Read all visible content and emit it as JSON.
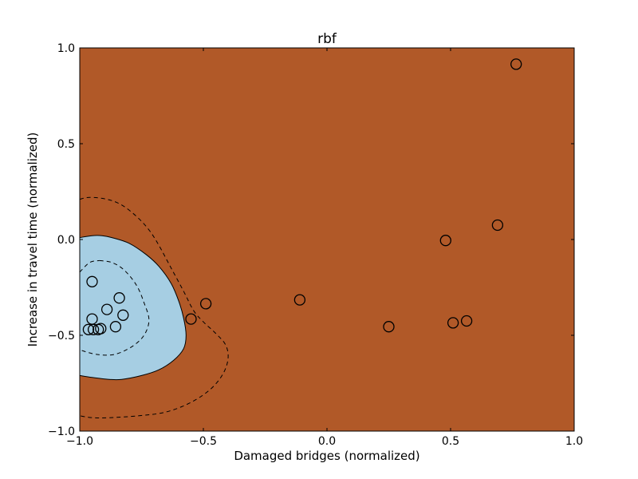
{
  "chart_data": {
    "type": "scatter",
    "title": "rbf",
    "xlabel": "Damaged bridges (normalized)",
    "ylabel": "Increase in travel time (normalized)",
    "xlim": [
      -1.0,
      1.0
    ],
    "ylim": [
      -1.0,
      1.0
    ],
    "x_ticks": [
      "−1.0",
      "−0.5",
      "0.0",
      "0.5",
      "1.0"
    ],
    "x_tick_values": [
      -1.0,
      -0.5,
      0.0,
      0.5,
      1.0
    ],
    "y_ticks": [
      "−1.0",
      "−0.5",
      "0.0",
      "0.5",
      "1.0"
    ],
    "y_tick_values": [
      -1.0,
      -0.5,
      0.0,
      0.5,
      1.0
    ],
    "grid": false,
    "colors": {
      "background_class": "#b15928",
      "region_class": "#a6cee3",
      "points_edge": "#000000"
    },
    "decision_boundary": [
      [
        -1.0,
        0.01
      ],
      [
        -0.95,
        0.02
      ],
      [
        -0.91,
        0.02
      ],
      [
        -0.87,
        0.01
      ],
      [
        -0.8,
        -0.02
      ],
      [
        -0.73,
        -0.08
      ],
      [
        -0.68,
        -0.14
      ],
      [
        -0.63,
        -0.23
      ],
      [
        -0.6,
        -0.32
      ],
      [
        -0.58,
        -0.41
      ],
      [
        -0.57,
        -0.5
      ],
      [
        -0.58,
        -0.57
      ],
      [
        -0.62,
        -0.63
      ],
      [
        -0.68,
        -0.68
      ],
      [
        -0.75,
        -0.71
      ],
      [
        -0.83,
        -0.73
      ],
      [
        -0.88,
        -0.73
      ],
      [
        -0.95,
        -0.72
      ],
      [
        -1.0,
        -0.71
      ]
    ],
    "margin_outer": [
      [
        -1.0,
        0.21
      ],
      [
        -0.96,
        0.22
      ],
      [
        -0.89,
        0.21
      ],
      [
        -0.83,
        0.18
      ],
      [
        -0.77,
        0.12
      ],
      [
        -0.72,
        0.05
      ],
      [
        -0.68,
        -0.03
      ],
      [
        -0.63,
        -0.15
      ],
      [
        -0.58,
        -0.27
      ],
      [
        -0.54,
        -0.37
      ],
      [
        -0.5,
        -0.43
      ],
      [
        -0.45,
        -0.49
      ],
      [
        -0.41,
        -0.55
      ],
      [
        -0.4,
        -0.62
      ],
      [
        -0.42,
        -0.7
      ],
      [
        -0.47,
        -0.78
      ],
      [
        -0.55,
        -0.85
      ],
      [
        -0.65,
        -0.9
      ],
      [
        -0.76,
        -0.92
      ],
      [
        -0.88,
        -0.93
      ],
      [
        -0.95,
        -0.93
      ],
      [
        -1.0,
        -0.92
      ]
    ],
    "margin_inner": [
      [
        -0.92,
        -0.11
      ],
      [
        -0.87,
        -0.12
      ],
      [
        -0.82,
        -0.16
      ],
      [
        -0.77,
        -0.24
      ],
      [
        -0.74,
        -0.33
      ],
      [
        -0.72,
        -0.42
      ],
      [
        -0.74,
        -0.5
      ],
      [
        -0.79,
        -0.56
      ],
      [
        -0.86,
        -0.6
      ],
      [
        -0.93,
        -0.6
      ],
      [
        -0.99,
        -0.58
      ],
      [
        -1.0,
        -0.57
      ]
    ],
    "margin_inner_top": [
      [
        -1.0,
        -0.17
      ],
      [
        -0.96,
        -0.12
      ],
      [
        -0.92,
        -0.11
      ]
    ],
    "points": [
      {
        "x": -0.95,
        "y": -0.22
      },
      {
        "x": -0.84,
        "y": -0.305
      },
      {
        "x": -0.89,
        "y": -0.365
      },
      {
        "x": -0.825,
        "y": -0.395
      },
      {
        "x": -0.95,
        "y": -0.415
      },
      {
        "x": -0.855,
        "y": -0.455
      },
      {
        "x": -0.965,
        "y": -0.47
      },
      {
        "x": -0.945,
        "y": -0.47
      },
      {
        "x": -0.925,
        "y": -0.47
      },
      {
        "x": -0.915,
        "y": -0.465
      },
      {
        "x": -0.55,
        "y": -0.415
      },
      {
        "x": -0.49,
        "y": -0.335
      },
      {
        "x": -0.11,
        "y": -0.315
      },
      {
        "x": 0.25,
        "y": -0.455
      },
      {
        "x": 0.48,
        "y": -0.005
      },
      {
        "x": 0.51,
        "y": -0.435
      },
      {
        "x": 0.565,
        "y": -0.425
      },
      {
        "x": 0.69,
        "y": 0.075
      },
      {
        "x": 0.765,
        "y": 0.915
      }
    ]
  }
}
